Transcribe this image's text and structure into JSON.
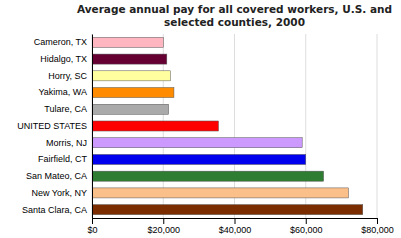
{
  "chart_data": {
    "type": "bar",
    "orientation": "horizontal",
    "title": "Average annual pay for all covered workers, U.S. and\nselected counties, 2000",
    "categories": [
      "Cameron, TX",
      "Hidalgo, TX",
      "Horry, SC",
      "Yakima, WA",
      "Tulare, CA",
      "UNITED STATES",
      "Morris, NJ",
      "Fairfield, CT",
      "San Mateo, CA",
      "New York, NY",
      "Santa Clara, CA"
    ],
    "values": [
      20000,
      21000,
      22000,
      23000,
      21500,
      35500,
      59000,
      60000,
      65000,
      72000,
      76000
    ],
    "colors": [
      "#FFB6C1",
      "#660033",
      "#FFFFA0",
      "#FF8C00",
      "#AAAAAA",
      "#FF0000",
      "#CC99FF",
      "#0000EE",
      "#2E7D32",
      "#FBBF8A",
      "#7B2D00"
    ],
    "xlim": [
      0,
      80000
    ],
    "xticks": [
      {
        "value": 0,
        "label": "$0"
      },
      {
        "value": 20000,
        "label": "$20,000"
      },
      {
        "value": 40000,
        "label": "$40,000"
      },
      {
        "value": 60000,
        "label": "$60,000"
      },
      {
        "value": 80000,
        "label": "$80,000"
      }
    ],
    "grid": true
  }
}
